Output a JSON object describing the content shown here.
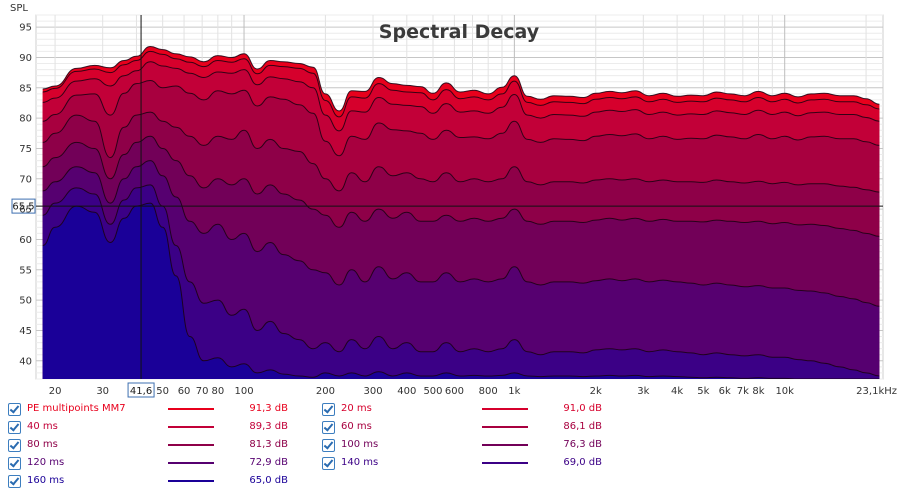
{
  "chart_data": {
    "type": "area",
    "title": "Spectral Decay",
    "ylabel": "SPL",
    "xlabel": "",
    "x_scale": "log",
    "xlim": [
      17,
      23100
    ],
    "ylim": [
      37,
      97
    ],
    "grid": true,
    "y_ticks": [
      "95",
      "90",
      "85",
      "80",
      "75",
      "70",
      "65",
      "60",
      "55",
      "50",
      "45",
      "40"
    ],
    "x_ticks": [
      {
        "v": 20,
        "label": "20"
      },
      {
        "v": 30,
        "label": "30"
      },
      {
        "v": 50,
        "label": "50"
      },
      {
        "v": 60,
        "label": "60"
      },
      {
        "v": 70,
        "label": "70"
      },
      {
        "v": 80,
        "label": "80"
      },
      {
        "v": 100,
        "label": "100"
      },
      {
        "v": 200,
        "label": "200"
      },
      {
        "v": 300,
        "label": "300"
      },
      {
        "v": 400,
        "label": "400"
      },
      {
        "v": 500,
        "label": "500"
      },
      {
        "v": 600,
        "label": "600"
      },
      {
        "v": 800,
        "label": "800"
      },
      {
        "v": 1000,
        "label": "1k"
      },
      {
        "v": 2000,
        "label": "2k"
      },
      {
        "v": 3000,
        "label": "3k"
      },
      {
        "v": 4000,
        "label": "4k"
      },
      {
        "v": 5000,
        "label": "5k"
      },
      {
        "v": 6000,
        "label": "6k"
      },
      {
        "v": 7000,
        "label": "7k"
      },
      {
        "v": 8000,
        "label": "8k"
      },
      {
        "v": 10000,
        "label": "10k"
      },
      {
        "v": 23100,
        "label": "23,1kHz"
      }
    ],
    "cursor": {
      "x": 41.6,
      "x_label": "41,6",
      "y": 65.5,
      "y_label": "65,5"
    },
    "x": [
      18,
      20,
      24,
      28,
      32,
      36,
      40,
      45,
      50,
      56,
      63,
      71,
      80,
      90,
      100,
      112,
      125,
      140,
      160,
      180,
      200,
      225,
      250,
      280,
      315,
      355,
      400,
      450,
      500,
      560,
      630,
      710,
      800,
      900,
      1000,
      1120,
      1250,
      1400,
      1600,
      1800,
      2000,
      2250,
      2500,
      2800,
      3150,
      3550,
      4000,
      4500,
      5000,
      5600,
      6300,
      7100,
      8000,
      9000,
      10000,
      11200,
      12500,
      14000,
      16000,
      18000,
      20000,
      22400
    ],
    "series": [
      {
        "name": "PE multipoints MM7",
        "color": "#e8001c",
        "values": [
          84.8,
          85.3,
          88.2,
          88.7,
          88.3,
          89.5,
          90.2,
          91.8,
          91.3,
          90.6,
          90.1,
          89.3,
          90.3,
          90.0,
          90.6,
          88.1,
          89.5,
          89.3,
          89.0,
          88.4,
          84.0,
          81.2,
          84.5,
          84.4,
          86.7,
          85.7,
          85.4,
          85.2,
          84.1,
          85.8,
          84.3,
          84.6,
          84.0,
          85.1,
          87.0,
          83.6,
          83.1,
          83.7,
          83.6,
          83.4,
          84.1,
          84.4,
          84.2,
          84.5,
          83.7,
          84.1,
          83.6,
          83.8,
          83.7,
          84.3,
          84.0,
          83.7,
          84.4,
          83.7,
          84.1,
          83.5,
          84.0,
          84.1,
          83.7,
          83.7,
          83.2,
          82.3
        ]
      },
      {
        "name": "20 ms",
        "color": "#d6002c",
        "values": [
          84.3,
          84.9,
          87.7,
          88.1,
          87.5,
          88.8,
          89.5,
          91.0,
          90.5,
          89.8,
          89.2,
          88.5,
          89.5,
          89.2,
          89.8,
          87.3,
          88.7,
          88.5,
          88.2,
          87.4,
          82.9,
          80.2,
          83.5,
          83.3,
          85.7,
          84.6,
          84.3,
          84.2,
          83.0,
          84.7,
          83.2,
          83.5,
          83.0,
          84.0,
          86.1,
          82.6,
          82.1,
          82.7,
          82.6,
          82.4,
          83.1,
          83.4,
          83.2,
          83.5,
          82.7,
          83.1,
          82.6,
          82.8,
          82.7,
          83.3,
          83.0,
          82.7,
          83.4,
          82.7,
          83.1,
          82.5,
          83.0,
          83.1,
          82.7,
          82.7,
          82.2,
          81.5
        ]
      },
      {
        "name": "40 ms",
        "color": "#c20038",
        "values": [
          82.6,
          83.3,
          86.1,
          86.5,
          85.3,
          87.0,
          87.8,
          89.3,
          88.6,
          88.2,
          87.4,
          86.7,
          87.6,
          87.4,
          88.0,
          85.5,
          86.8,
          86.5,
          86.0,
          85.0,
          80.5,
          77.9,
          81.2,
          81.0,
          83.4,
          82.3,
          82.1,
          81.9,
          80.8,
          82.4,
          81.0,
          81.2,
          80.8,
          81.8,
          83.9,
          80.5,
          80.0,
          80.6,
          80.5,
          80.3,
          81.0,
          81.3,
          81.1,
          81.4,
          80.6,
          81.0,
          80.5,
          80.7,
          80.6,
          81.2,
          80.9,
          80.6,
          81.3,
          80.6,
          81.0,
          80.4,
          80.9,
          81.0,
          80.6,
          80.6,
          80.1,
          79.5
        ]
      },
      {
        "name": "60 ms",
        "color": "#a8003f",
        "values": [
          79.5,
          80.6,
          83.8,
          84.0,
          80.5,
          84.1,
          85.7,
          86.2,
          85.0,
          85.3,
          84.1,
          83.0,
          84.5,
          84.0,
          84.6,
          82.0,
          83.5,
          83.1,
          82.2,
          80.8,
          76.2,
          73.8,
          77.0,
          76.5,
          79.2,
          78.1,
          77.9,
          77.5,
          76.5,
          78.0,
          76.8,
          76.9,
          76.6,
          77.5,
          79.5,
          76.5,
          76.0,
          76.6,
          76.5,
          76.3,
          77.0,
          77.3,
          77.1,
          77.4,
          76.6,
          77.0,
          76.5,
          76.7,
          76.6,
          77.2,
          76.9,
          76.6,
          77.3,
          76.6,
          77.0,
          76.4,
          76.9,
          77.0,
          76.6,
          76.6,
          76.1,
          75.5
        ]
      },
      {
        "name": "80 ms",
        "color": "#8e0048",
        "values": [
          76.0,
          77.5,
          80.5,
          79.5,
          73.5,
          78.5,
          80.5,
          81.0,
          79.5,
          78.5,
          77.0,
          75.5,
          77.0,
          76.5,
          78.0,
          75.0,
          76.5,
          75.0,
          74.5,
          72.5,
          70.0,
          68.0,
          71.0,
          69.5,
          72.0,
          70.5,
          71.0,
          70.0,
          69.5,
          71.0,
          69.5,
          70.0,
          69.5,
          70.0,
          72.0,
          69.5,
          69.0,
          69.5,
          69.5,
          69.3,
          69.8,
          70.0,
          69.8,
          70.0,
          69.5,
          69.8,
          69.5,
          69.5,
          69.4,
          69.8,
          69.5,
          69.3,
          69.6,
          69.2,
          69.4,
          69.0,
          69.2,
          69.2,
          68.8,
          68.6,
          68.2,
          67.8
        ]
      },
      {
        "name": "100 ms",
        "color": "#720058",
        "values": [
          72.0,
          73.5,
          76.0,
          75.0,
          70.0,
          74.0,
          76.0,
          77.0,
          75.0,
          73.0,
          70.5,
          68.5,
          70.0,
          69.0,
          70.0,
          67.5,
          69.0,
          67.5,
          66.5,
          65.0,
          64.0,
          62.0,
          64.5,
          63.0,
          65.0,
          63.5,
          64.5,
          63.0,
          63.0,
          64.0,
          63.0,
          63.5,
          63.0,
          63.5,
          65.0,
          63.0,
          62.5,
          63.0,
          63.0,
          62.8,
          63.2,
          63.5,
          63.2,
          63.5,
          63.0,
          63.3,
          63.0,
          63.0,
          62.9,
          63.2,
          63.0,
          62.8,
          63.0,
          62.6,
          62.8,
          62.4,
          62.5,
          62.3,
          61.8,
          61.5,
          61.0,
          60.5
        ]
      },
      {
        "name": "120 ms",
        "color": "#560070",
        "values": [
          68.0,
          69.5,
          72.0,
          71.0,
          66.0,
          70.0,
          72.0,
          73.0,
          70.5,
          67.0,
          63.0,
          61.0,
          62.5,
          60.0,
          61.0,
          58.0,
          59.5,
          57.5,
          56.5,
          55.0,
          54.5,
          52.5,
          55.0,
          53.0,
          55.5,
          53.5,
          54.5,
          53.0,
          53.0,
          54.5,
          53.0,
          53.5,
          53.0,
          53.5,
          55.5,
          53.0,
          52.5,
          53.0,
          53.0,
          52.8,
          53.2,
          53.5,
          53.2,
          53.5,
          53.0,
          53.3,
          53.0,
          52.8,
          52.5,
          52.8,
          52.5,
          52.2,
          52.4,
          52.0,
          52.0,
          51.6,
          51.5,
          51.2,
          50.6,
          50.2,
          49.6,
          49.0
        ]
      },
      {
        "name": "140 ms",
        "color": "#3b0086",
        "values": [
          64.0,
          66.0,
          68.5,
          67.5,
          62.5,
          66.5,
          68.5,
          69.0,
          65.5,
          59.0,
          53.0,
          49.5,
          50.0,
          47.5,
          48.5,
          45.0,
          46.5,
          44.5,
          43.5,
          42.0,
          43.0,
          41.5,
          43.5,
          42.0,
          44.0,
          42.0,
          43.0,
          41.5,
          41.5,
          43.0,
          41.5,
          42.0,
          41.5,
          42.0,
          43.5,
          41.5,
          41.0,
          41.5,
          41.5,
          41.3,
          41.8,
          42.0,
          41.8,
          42.0,
          41.5,
          41.8,
          41.5,
          41.3,
          41.0,
          41.3,
          41.0,
          40.8,
          41.0,
          40.6,
          40.6,
          40.2,
          40.0,
          39.6,
          39.0,
          38.5,
          38.0,
          37.5
        ]
      },
      {
        "name": "160 ms",
        "color": "#1a0098",
        "values": [
          59.0,
          62.0,
          65.5,
          64.5,
          59.5,
          63.5,
          65.5,
          66.0,
          62.0,
          54.0,
          44.0,
          40.0,
          40.5,
          39.0,
          39.5,
          38.0,
          38.5,
          37.8,
          37.5,
          37.3,
          38.0,
          37.5,
          38.0,
          37.5,
          38.2,
          37.5,
          38.0,
          37.5,
          37.5,
          38.0,
          37.5,
          37.6,
          37.5,
          37.6,
          38.0,
          37.5,
          37.4,
          37.5,
          37.5,
          37.4,
          37.5,
          37.6,
          37.5,
          37.6,
          37.4,
          37.5,
          37.4,
          37.3,
          37.2,
          37.3,
          37.2,
          37.1,
          37.2,
          37.1,
          37.1,
          37.0,
          37.0,
          37.0,
          37.0,
          37.0,
          37.0,
          37.0
        ]
      }
    ],
    "legend_entries": [
      {
        "label": "PE multipoints MM7",
        "value": "91,3 dB",
        "color": "#e8001c"
      },
      {
        "label": "20 ms",
        "value": "91,0 dB",
        "color": "#d6002c"
      },
      {
        "label": "40 ms",
        "value": "89,3 dB",
        "color": "#c20038"
      },
      {
        "label": "60 ms",
        "value": "86,1 dB",
        "color": "#a8003f"
      },
      {
        "label": "80 ms",
        "value": "81,3 dB",
        "color": "#8e0048"
      },
      {
        "label": "100 ms",
        "value": "76,3 dB",
        "color": "#720058"
      },
      {
        "label": "120 ms",
        "value": "72,9 dB",
        "color": "#560070"
      },
      {
        "label": "140 ms",
        "value": "69,0 dB",
        "color": "#3b0086"
      },
      {
        "label": "160 ms",
        "value": "65,0 dB",
        "color": "#1a0098"
      }
    ]
  }
}
